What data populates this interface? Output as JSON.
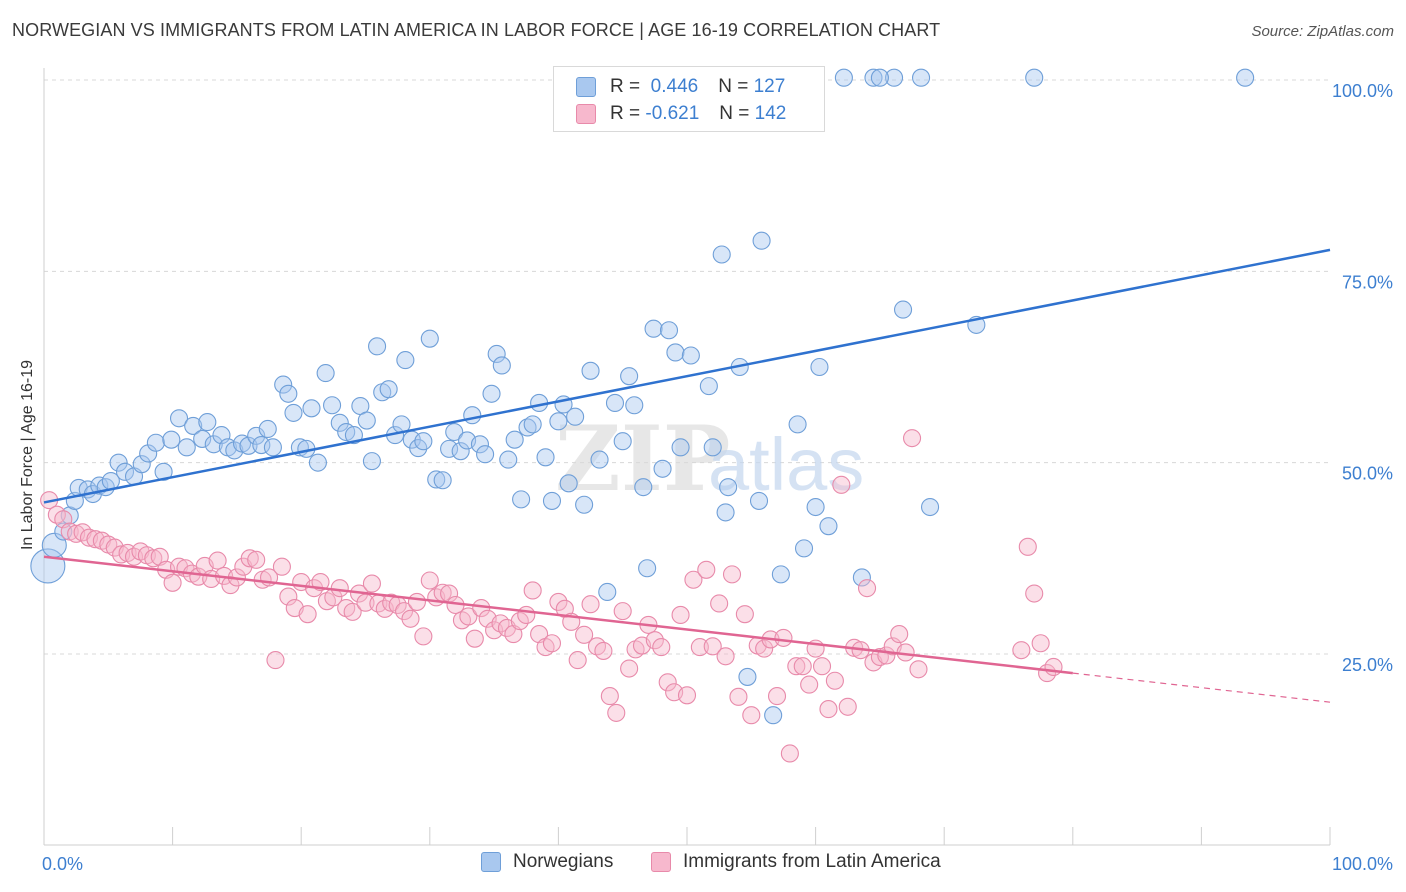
{
  "title": "NORWEGIAN VS IMMIGRANTS FROM LATIN AMERICA IN LABOR FORCE | AGE 16-19 CORRELATION CHART",
  "source": "Source: ZipAtlas.com",
  "watermark": {
    "zip": "ZIP",
    "atlas": "atlas"
  },
  "colors": {
    "blue_fill": "#a9c8ef",
    "blue_stroke": "#6f9fd8",
    "blue_line": "#2f72cf",
    "pink_fill": "#f7b8cd",
    "pink_stroke": "#e88aaa",
    "pink_line": "#e06592",
    "tick_label": "#3d7fd0",
    "grid": "#d8d8d8"
  },
  "legend": {
    "series": [
      {
        "r_label": "R =",
        "r_value": "0.446",
        "n_label": "N =",
        "n_value": "127"
      },
      {
        "r_label": "R =",
        "r_value": "-0.621",
        "n_label": "N =",
        "n_value": "142"
      }
    ]
  },
  "bottom_legend": [
    "Norwegians",
    "Immigrants from Latin America"
  ],
  "chart_data": {
    "type": "scatter",
    "title": "NORWEGIAN VS IMMIGRANTS FROM LATIN AMERICA IN LABOR FORCE | AGE 16-19 CORRELATION CHART",
    "xlabel": "",
    "ylabel": "In Labor Force | Age 16-19",
    "xlim": [
      0,
      100
    ],
    "ylim": [
      0,
      102
    ],
    "x_tick_labels": [
      "0.0%",
      "100.0%"
    ],
    "y_ticks": [
      25,
      50,
      75,
      100
    ],
    "y_tick_labels": [
      "25.0%",
      "50.0%",
      "75.0%",
      "100.0%"
    ],
    "grid": true,
    "series": [
      {
        "name": "Norwegians",
        "color": "#a9c8ef",
        "r": 0.446,
        "n": 127,
        "trend": {
          "x": [
            0,
            100
          ],
          "y": [
            44.8,
            77.8
          ]
        },
        "points": [
          [
            0.3,
            36.5
          ],
          [
            0.8,
            39.2
          ],
          [
            1.5,
            41.0
          ],
          [
            2.0,
            43.1
          ],
          [
            2.4,
            45.0
          ],
          [
            2.7,
            46.7
          ],
          [
            3.4,
            46.5
          ],
          [
            3.8,
            45.9
          ],
          [
            4.3,
            47.0
          ],
          [
            4.8,
            46.8
          ],
          [
            5.2,
            47.6
          ],
          [
            5.8,
            50.0
          ],
          [
            6.3,
            48.8
          ],
          [
            7.0,
            48.2
          ],
          [
            7.6,
            49.8
          ],
          [
            8.1,
            51.2
          ],
          [
            8.7,
            52.6
          ],
          [
            9.3,
            48.8
          ],
          [
            9.9,
            53.0
          ],
          [
            10.5,
            55.8
          ],
          [
            11.1,
            52.0
          ],
          [
            11.6,
            54.8
          ],
          [
            12.3,
            53.1
          ],
          [
            12.7,
            55.3
          ],
          [
            13.2,
            52.4
          ],
          [
            13.8,
            53.6
          ],
          [
            14.3,
            52.0
          ],
          [
            14.8,
            51.6
          ],
          [
            15.4,
            52.5
          ],
          [
            15.9,
            52.2
          ],
          [
            16.5,
            53.5
          ],
          [
            16.9,
            52.3
          ],
          [
            17.4,
            54.4
          ],
          [
            17.8,
            52.0
          ],
          [
            18.6,
            60.2
          ],
          [
            19.0,
            59.0
          ],
          [
            19.4,
            56.5
          ],
          [
            19.9,
            52.0
          ],
          [
            20.4,
            51.8
          ],
          [
            20.8,
            57.1
          ],
          [
            21.3,
            50.0
          ],
          [
            21.9,
            61.7
          ],
          [
            22.4,
            57.5
          ],
          [
            23.0,
            55.2
          ],
          [
            23.5,
            54.0
          ],
          [
            24.1,
            53.6
          ],
          [
            24.6,
            57.4
          ],
          [
            25.1,
            55.5
          ],
          [
            25.5,
            50.2
          ],
          [
            25.9,
            65.2
          ],
          [
            26.3,
            59.2
          ],
          [
            26.8,
            59.6
          ],
          [
            27.3,
            53.6
          ],
          [
            27.8,
            55.0
          ],
          [
            28.1,
            63.4
          ],
          [
            28.6,
            53.0
          ],
          [
            29.1,
            51.9
          ],
          [
            29.5,
            52.8
          ],
          [
            30.0,
            66.2
          ],
          [
            30.5,
            47.8
          ],
          [
            31.0,
            47.7
          ],
          [
            31.5,
            51.8
          ],
          [
            31.9,
            54.0
          ],
          [
            32.4,
            51.5
          ],
          [
            32.9,
            52.9
          ],
          [
            33.3,
            56.2
          ],
          [
            33.9,
            52.4
          ],
          [
            34.3,
            51.1
          ],
          [
            34.8,
            59.0
          ],
          [
            35.2,
            64.2
          ],
          [
            35.6,
            62.7
          ],
          [
            36.1,
            50.4
          ],
          [
            36.6,
            53.0
          ],
          [
            37.1,
            45.2
          ],
          [
            37.6,
            54.6
          ],
          [
            38.0,
            55.0
          ],
          [
            38.5,
            57.8
          ],
          [
            39.0,
            50.7
          ],
          [
            39.5,
            45.0
          ],
          [
            40.0,
            55.4
          ],
          [
            40.4,
            57.6
          ],
          [
            40.8,
            47.3
          ],
          [
            41.3,
            56.0
          ],
          [
            42.0,
            44.5
          ],
          [
            42.5,
            62.0
          ],
          [
            43.2,
            50.4
          ],
          [
            43.8,
            33.1
          ],
          [
            44.4,
            57.8
          ],
          [
            45.0,
            52.8
          ],
          [
            45.5,
            61.3
          ],
          [
            45.9,
            57.5
          ],
          [
            46.6,
            46.8
          ],
          [
            46.9,
            36.2
          ],
          [
            47.4,
            67.5
          ],
          [
            48.1,
            49.2
          ],
          [
            48.6,
            67.3
          ],
          [
            49.1,
            64.4
          ],
          [
            49.5,
            52.0
          ],
          [
            50.3,
            64.0
          ],
          [
            51.7,
            60.0
          ],
          [
            52.0,
            52.0
          ],
          [
            52.7,
            77.2
          ],
          [
            53.0,
            43.5
          ],
          [
            53.2,
            46.8
          ],
          [
            54.1,
            62.5
          ],
          [
            54.7,
            22.0
          ],
          [
            55.6,
            45.0
          ],
          [
            55.8,
            79.0
          ],
          [
            56.2,
            100.3
          ],
          [
            56.7,
            17.0
          ],
          [
            57.3,
            35.4
          ],
          [
            58.6,
            55.0
          ],
          [
            59.1,
            38.8
          ],
          [
            60.0,
            44.2
          ],
          [
            60.3,
            62.5
          ],
          [
            61.0,
            41.7
          ],
          [
            62.2,
            100.3
          ],
          [
            63.6,
            35.0
          ],
          [
            64.5,
            100.3
          ],
          [
            66.1,
            100.3
          ],
          [
            66.8,
            70.0
          ],
          [
            68.2,
            100.3
          ],
          [
            68.9,
            44.2
          ],
          [
            72.5,
            68.0
          ],
          [
            77.0,
            100.3
          ],
          [
            93.4,
            100.3
          ],
          [
            65.0,
            100.3
          ]
        ]
      },
      {
        "name": "Immigrants from Latin America",
        "color": "#f7b8cd",
        "r": -0.621,
        "n": 142,
        "trend": {
          "x": [
            0,
            80
          ],
          "y": [
            37.7,
            22.5
          ]
        },
        "trend_dashed": {
          "x": [
            80,
            100
          ],
          "y": [
            22.5,
            18.7
          ]
        },
        "points": [
          [
            0.4,
            45.1
          ],
          [
            1.0,
            43.2
          ],
          [
            1.5,
            42.6
          ],
          [
            2.0,
            41.0
          ],
          [
            2.5,
            40.7
          ],
          [
            3.0,
            40.9
          ],
          [
            3.5,
            40.2
          ],
          [
            4.0,
            40.0
          ],
          [
            4.5,
            39.8
          ],
          [
            5.0,
            39.3
          ],
          [
            5.5,
            38.9
          ],
          [
            6.0,
            38.0
          ],
          [
            6.5,
            38.2
          ],
          [
            7.0,
            37.7
          ],
          [
            7.5,
            38.4
          ],
          [
            8.0,
            37.9
          ],
          [
            8.5,
            37.5
          ],
          [
            9.0,
            37.7
          ],
          [
            9.5,
            36.0
          ],
          [
            10.0,
            34.3
          ],
          [
            10.5,
            36.4
          ],
          [
            11.0,
            36.2
          ],
          [
            11.5,
            35.5
          ],
          [
            12.0,
            35.1
          ],
          [
            12.5,
            36.5
          ],
          [
            13.0,
            34.8
          ],
          [
            13.5,
            37.2
          ],
          [
            14.0,
            35.2
          ],
          [
            14.5,
            34.0
          ],
          [
            15.0,
            35.0
          ],
          [
            15.5,
            36.4
          ],
          [
            16.0,
            37.5
          ],
          [
            16.5,
            37.3
          ],
          [
            17.0,
            34.7
          ],
          [
            17.5,
            35.0
          ],
          [
            18.0,
            24.2
          ],
          [
            18.5,
            36.4
          ],
          [
            19.0,
            32.5
          ],
          [
            19.5,
            31.0
          ],
          [
            20.0,
            34.4
          ],
          [
            20.5,
            30.2
          ],
          [
            21.0,
            33.6
          ],
          [
            21.5,
            34.4
          ],
          [
            22.0,
            31.9
          ],
          [
            22.5,
            32.4
          ],
          [
            23.0,
            33.6
          ],
          [
            23.5,
            31.0
          ],
          [
            24.0,
            30.5
          ],
          [
            24.5,
            32.9
          ],
          [
            25.0,
            31.7
          ],
          [
            25.5,
            34.2
          ],
          [
            26.0,
            31.6
          ],
          [
            26.5,
            30.9
          ],
          [
            27.0,
            31.7
          ],
          [
            27.5,
            31.4
          ],
          [
            28.0,
            30.6
          ],
          [
            28.5,
            29.6
          ],
          [
            29.0,
            31.8
          ],
          [
            29.5,
            27.3
          ],
          [
            30.0,
            34.6
          ],
          [
            30.5,
            32.4
          ],
          [
            31.0,
            33.0
          ],
          [
            31.5,
            32.9
          ],
          [
            32.0,
            31.4
          ],
          [
            32.5,
            29.4
          ],
          [
            33.0,
            29.9
          ],
          [
            33.5,
            27.0
          ],
          [
            34.0,
            31.0
          ],
          [
            34.5,
            29.6
          ],
          [
            35.0,
            28.1
          ],
          [
            35.5,
            29.0
          ],
          [
            36.0,
            28.4
          ],
          [
            36.5,
            27.6
          ],
          [
            37.0,
            29.3
          ],
          [
            37.5,
            30.1
          ],
          [
            38.0,
            33.3
          ],
          [
            38.5,
            27.6
          ],
          [
            39.0,
            25.9
          ],
          [
            39.5,
            26.4
          ],
          [
            40.0,
            31.8
          ],
          [
            40.5,
            30.9
          ],
          [
            41.0,
            29.2
          ],
          [
            41.5,
            24.2
          ],
          [
            42.0,
            27.5
          ],
          [
            42.5,
            31.5
          ],
          [
            43.0,
            26.0
          ],
          [
            43.5,
            25.4
          ],
          [
            44.0,
            19.5
          ],
          [
            44.5,
            17.3
          ],
          [
            45.0,
            30.6
          ],
          [
            45.5,
            23.1
          ],
          [
            46.0,
            25.6
          ],
          [
            46.5,
            26.1
          ],
          [
            47.0,
            28.8
          ],
          [
            47.5,
            26.8
          ],
          [
            48.0,
            25.9
          ],
          [
            48.5,
            21.3
          ],
          [
            49.0,
            20.0
          ],
          [
            49.5,
            30.1
          ],
          [
            50.0,
            19.6
          ],
          [
            50.5,
            34.7
          ],
          [
            51.0,
            25.9
          ],
          [
            51.5,
            36.0
          ],
          [
            52.0,
            26.0
          ],
          [
            52.5,
            31.6
          ],
          [
            53.0,
            24.7
          ],
          [
            53.5,
            35.4
          ],
          [
            54.0,
            19.4
          ],
          [
            54.5,
            30.2
          ],
          [
            55.0,
            17.0
          ],
          [
            55.5,
            26.1
          ],
          [
            56.0,
            25.7
          ],
          [
            56.5,
            26.9
          ],
          [
            57.0,
            19.5
          ],
          [
            57.5,
            27.1
          ],
          [
            58.0,
            12.0
          ],
          [
            58.5,
            23.4
          ],
          [
            59.0,
            23.4
          ],
          [
            59.5,
            21.0
          ],
          [
            60.0,
            25.7
          ],
          [
            60.5,
            23.4
          ],
          [
            61.0,
            17.8
          ],
          [
            61.5,
            21.5
          ],
          [
            62.0,
            47.1
          ],
          [
            62.5,
            18.1
          ],
          [
            63.0,
            25.8
          ],
          [
            63.5,
            25.5
          ],
          [
            64.0,
            33.6
          ],
          [
            64.5,
            23.9
          ],
          [
            65.0,
            24.6
          ],
          [
            65.5,
            24.8
          ],
          [
            66.0,
            26.0
          ],
          [
            66.5,
            27.6
          ],
          [
            67.0,
            25.2
          ],
          [
            67.5,
            53.2
          ],
          [
            68.0,
            23.0
          ],
          [
            76.5,
            39.0
          ],
          [
            77.0,
            32.9
          ],
          [
            78.0,
            22.5
          ],
          [
            76.0,
            25.5
          ],
          [
            77.5,
            26.4
          ],
          [
            78.5,
            23.3
          ]
        ]
      }
    ]
  }
}
